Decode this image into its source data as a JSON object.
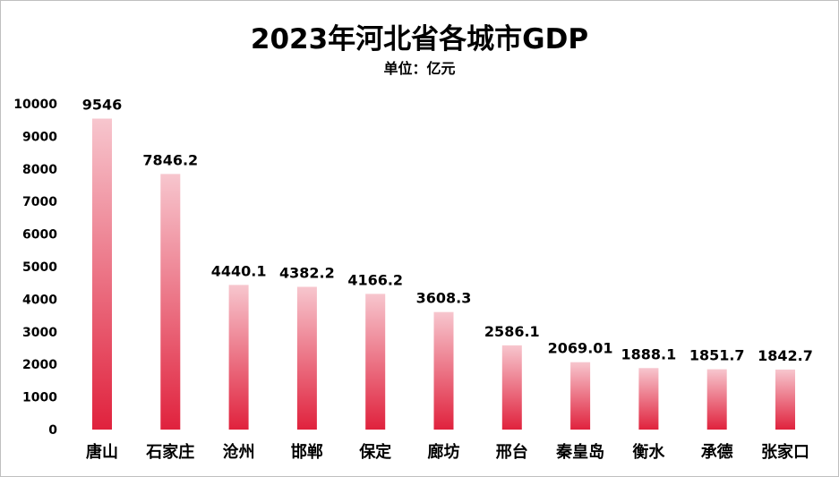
{
  "chart_data": {
    "type": "bar",
    "title": "2023年河北省各城市GDP",
    "subtitle": "单位：亿元",
    "categories": [
      "唐山",
      "石家庄",
      "沧州",
      "邯郸",
      "保定",
      "廊坊",
      "邢台",
      "秦皇岛",
      "衡水",
      "承德",
      "张家口"
    ],
    "values": [
      9546,
      7846.2,
      4440.1,
      4382.2,
      4166.2,
      3608.3,
      2586.1,
      2069.01,
      1888.1,
      1851.7,
      1842.7
    ],
    "data_labels": [
      "9546",
      "7846.2",
      "4440.1",
      "4382.2",
      "4166.2",
      "3608.3",
      "2586.1",
      "2069.01",
      "1888.1",
      "1851.7",
      "1842.7"
    ],
    "y_ticks": [
      "0",
      "1000",
      "2000",
      "3000",
      "4000",
      "5000",
      "6000",
      "7000",
      "8000",
      "9000",
      "10000"
    ],
    "ylim": [
      0,
      10000
    ],
    "grid": false,
    "legend": "none",
    "colors": {
      "bar_top": "#f7c6ce",
      "bar_bottom": "#e0223d"
    }
  }
}
